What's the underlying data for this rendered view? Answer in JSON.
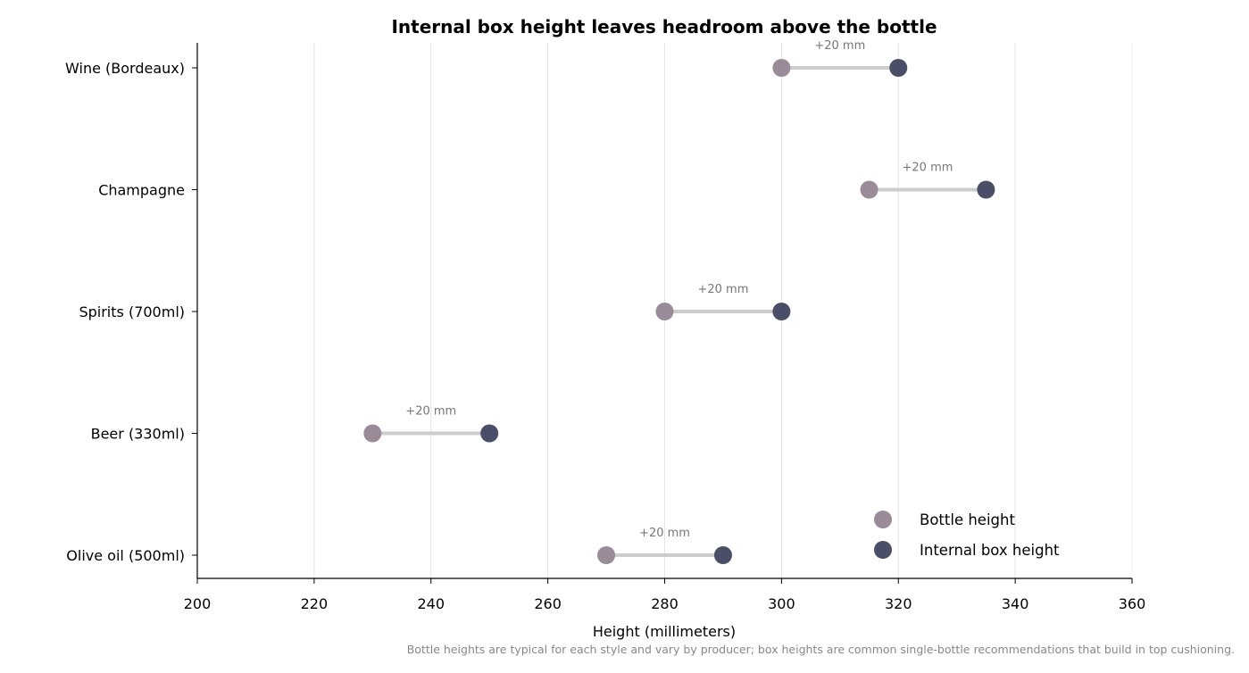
{
  "chart_data": {
    "type": "dumbbell",
    "title": "Internal box height leaves headroom above the bottle",
    "xlabel": "Height (millimeters)",
    "ylabel": "",
    "xlim": [
      200,
      360
    ],
    "xticks": [
      200,
      220,
      240,
      260,
      280,
      300,
      320,
      340,
      360
    ],
    "grid": "vertical",
    "legend_position": "bottom-right",
    "categories": [
      "Wine (Bordeaux)",
      "Champagne",
      "Spirits (700ml)",
      "Beer (330ml)",
      "Olive oil (500ml)"
    ],
    "series": [
      {
        "name": "Bottle height",
        "color": "#9a8b98",
        "values": [
          300,
          315,
          280,
          230,
          270
        ]
      },
      {
        "name": "Internal box height",
        "color": "#4a4e69",
        "values": [
          320,
          335,
          300,
          250,
          290
        ]
      }
    ],
    "annotations": [
      "+20 mm",
      "+20 mm",
      "+20 mm",
      "+20 mm",
      "+20 mm"
    ],
    "connector_color": "#cccccc",
    "footnote": "Bottle heights are typical for each style and vary by producer; box heights are common single-bottle recommendations that build in top cushioning."
  }
}
